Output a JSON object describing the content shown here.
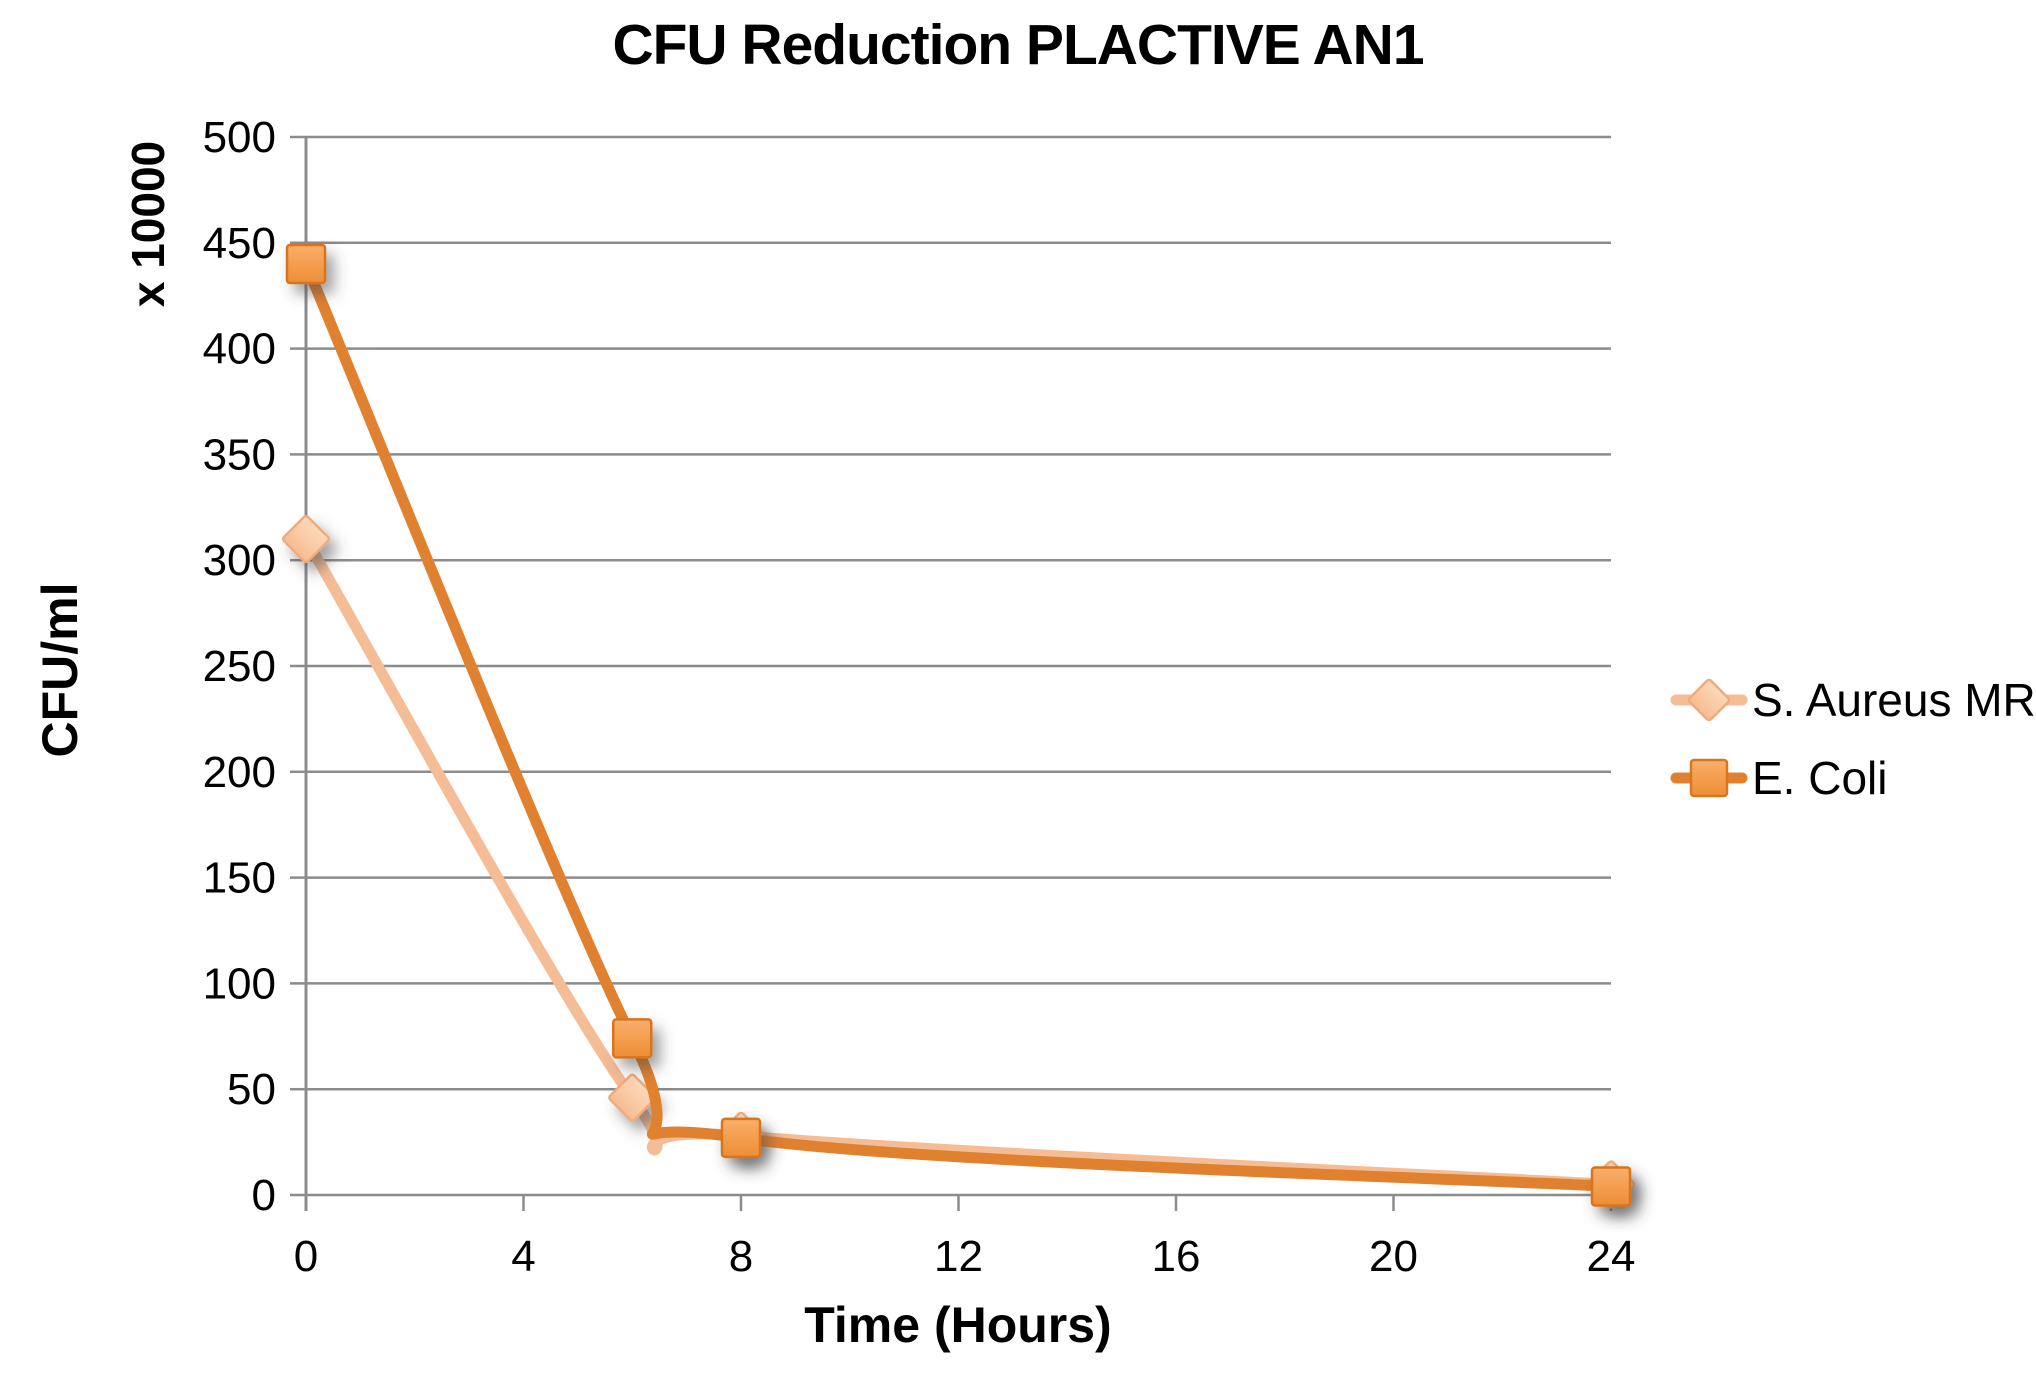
{
  "chart_data": {
    "type": "line",
    "title": "CFU Reduction PLACTIVE AN1",
    "xlabel": "Time (Hours)",
    "ylabel": "CFU/ml",
    "ylabel_unit": "x 10000",
    "xlim": [
      0,
      24
    ],
    "ylim": [
      0,
      500
    ],
    "x_ticks": [
      0,
      4,
      8,
      12,
      16,
      20,
      24
    ],
    "y_ticks": [
      0,
      50,
      100,
      150,
      200,
      250,
      300,
      350,
      400,
      450,
      500
    ],
    "grid": "horizontal",
    "legend_position": "right",
    "line_smoothing": true,
    "series": [
      {
        "name": "S. Aureus MR",
        "marker": "diamond",
        "x": [
          0,
          6,
          8,
          24
        ],
        "values": [
          310,
          46,
          28,
          5
        ],
        "color": "#F5BD96",
        "marker_fill_top": "#FCD9B9",
        "marker_fill_bottom": "#F7BC92",
        "marker_border": "#EFAB7E"
      },
      {
        "name": "E. Coli",
        "marker": "square",
        "x": [
          0,
          6,
          8,
          24
        ],
        "values": [
          440,
          74,
          27,
          4
        ],
        "color": "#E0812F",
        "marker_fill_top": "#F9AF6B",
        "marker_fill_bottom": "#EE8D35",
        "marker_border": "#D8751F"
      }
    ]
  },
  "chart_style": {
    "grid_color": "#8C8C8C",
    "axis_color": "#8C8C8C",
    "text_color": "#000000",
    "background": "#FFFFFF"
  }
}
